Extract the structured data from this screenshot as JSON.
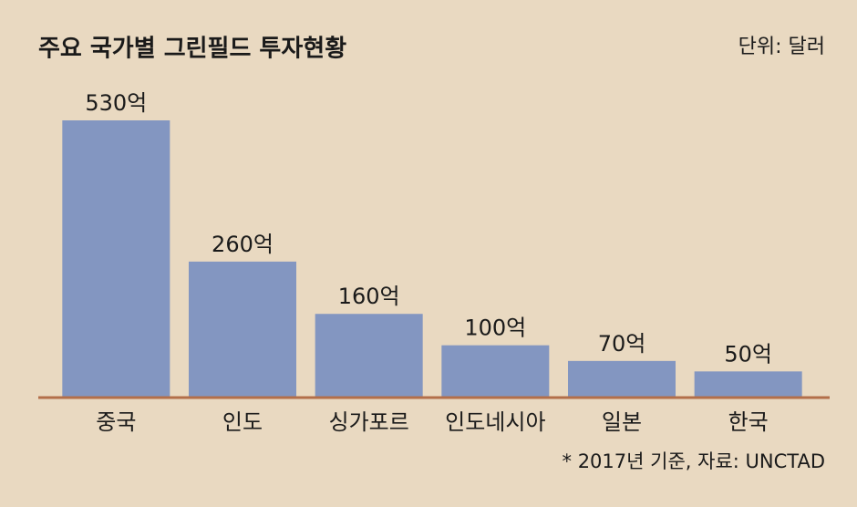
{
  "chart_data": {
    "type": "bar",
    "title": "주요 국가별 그린필드 투자현황",
    "unit": "단위: 달러",
    "note": "* 2017년 기준, 자료: UNCTAD",
    "categories": [
      "중국",
      "인도",
      "싱가포르",
      "인도네시아",
      "일본",
      "한국"
    ],
    "values": [
      530,
      260,
      160,
      100,
      70,
      50
    ],
    "value_labels": [
      "530억",
      "260억",
      "160억",
      "100억",
      "70억",
      "50억"
    ],
    "color": "#8396c1"
  }
}
